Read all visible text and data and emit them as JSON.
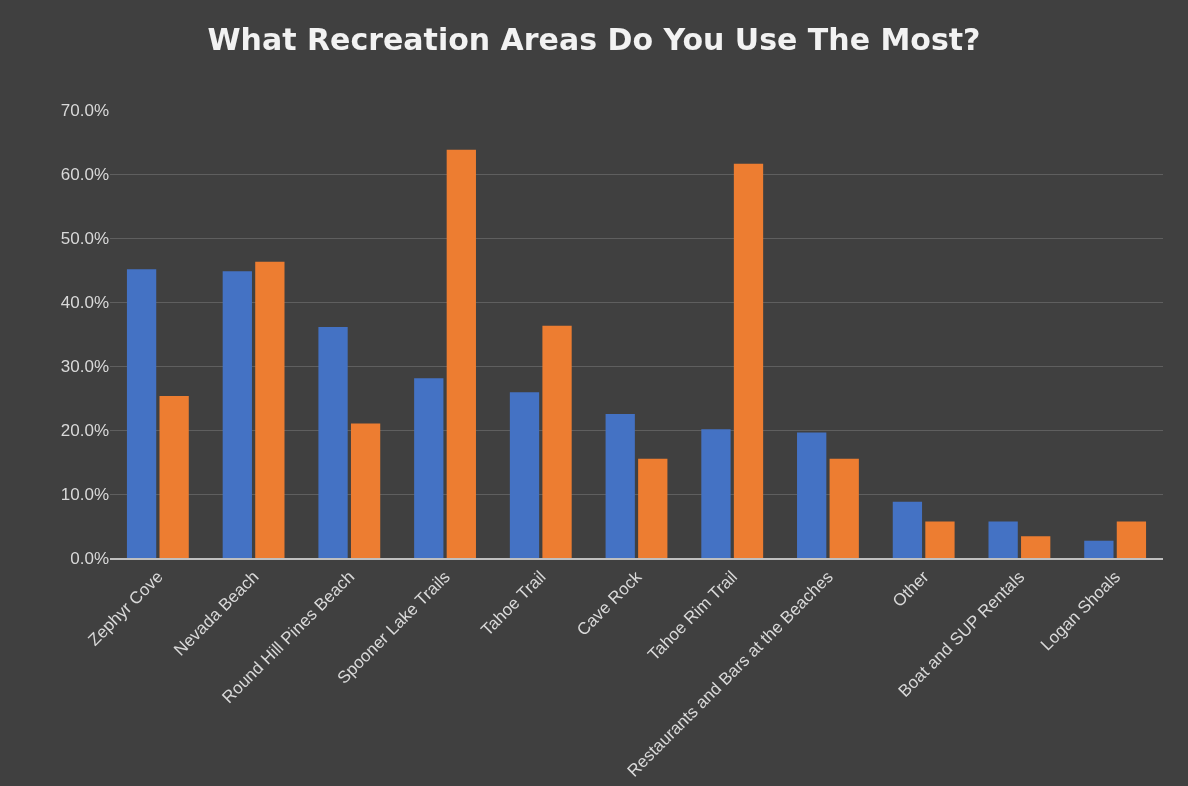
{
  "chart_data": {
    "type": "bar",
    "title": "What Recreation Areas Do You Use The Most?",
    "categories": [
      "Zephyr Cove",
      "Nevada Beach",
      "Round Hill Pines Beach",
      "Spooner Lake Trails",
      "Tahoe Trail",
      "Cave Rock",
      "Tahoe Rim Trail",
      "Restaurants and Bars at the Beaches",
      "Other",
      "Boat and SUP Rentals",
      "Logan Shoals"
    ],
    "series": [
      {
        "color": "#4472c4",
        "values": [
          45.1,
          44.8,
          36.1,
          28.1,
          25.9,
          22.5,
          20.1,
          19.6,
          8.8,
          5.7,
          2.7
        ]
      },
      {
        "color": "#ed7d31",
        "values": [
          25.3,
          46.3,
          21.0,
          63.8,
          36.3,
          15.5,
          61.6,
          15.5,
          5.7,
          3.4,
          5.7
        ]
      }
    ],
    "ylim": [
      0,
      70
    ],
    "yticks": [
      {
        "value": 0,
        "label": "0.0%"
      },
      {
        "value": 10,
        "label": "10.0%"
      },
      {
        "value": 20,
        "label": "20.0%"
      },
      {
        "value": 30,
        "label": "30.0%"
      },
      {
        "value": 40,
        "label": "40.0%"
      },
      {
        "value": 50,
        "label": "50.0%"
      },
      {
        "value": 60,
        "label": "60.0%"
      },
      {
        "value": 70,
        "label": "70.0%"
      }
    ],
    "grid": "y"
  }
}
